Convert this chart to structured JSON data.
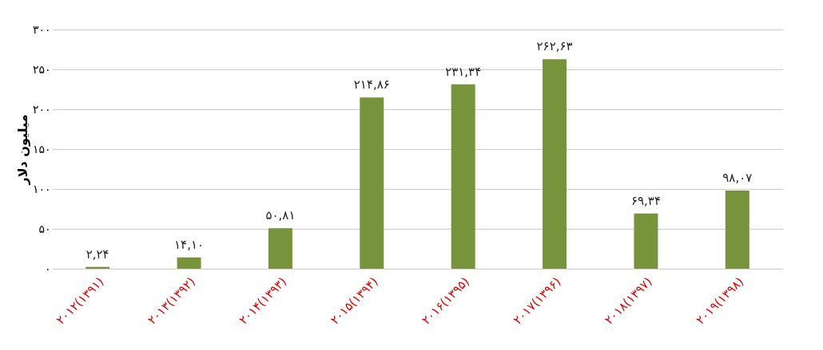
{
  "chart_data": {
    "type": "bar",
    "ylabel": "میلیون دلار",
    "categories": [
      "۲۰۱۲(۱۳۹۱)",
      "۲۰۱۳(۱۳۹۲)",
      "۲۰۱۴(۱۳۹۳)",
      "۲۰۱۵(۱۳۹۴)",
      "۲۰۱۶(۱۳۹۵)",
      "۲۰۱۷(۱۳۹۶)",
      "۲۰۱۸(۱۳۹۷)",
      "۲۰۱۹(۱۳۹۸)"
    ],
    "values": [
      2.24,
      14.1,
      50.81,
      214.86,
      231.34,
      262.63,
      69.34,
      98.07
    ],
    "value_labels": [
      "۲,۲۴",
      "۱۴,۱۰",
      "۵۰,۸۱",
      "۲۱۴,۸۶",
      "۲۳۱,۳۴",
      "۲۶۲,۶۳",
      "۶۹,۳۴",
      "۹۸,۰۷"
    ],
    "color": "#77933c",
    "ylim": [
      0,
      300
    ],
    "yticks": [
      {
        "value": 0,
        "label": "۰"
      },
      {
        "value": 50,
        "label": "۵۰"
      },
      {
        "value": 100,
        "label": "۱۰۰"
      },
      {
        "value": 150,
        "label": "۱۵۰"
      },
      {
        "value": 200,
        "label": "۲۰۰"
      },
      {
        "value": 250,
        "label": "۲۵۰"
      },
      {
        "value": 300,
        "label": "۳۰۰"
      }
    ],
    "grid": "y"
  }
}
